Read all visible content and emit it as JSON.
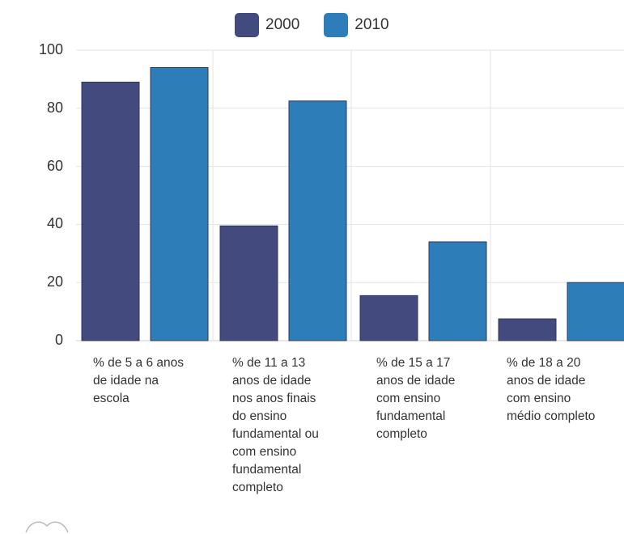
{
  "chart_data": {
    "type": "bar",
    "title": "",
    "xlabel": "",
    "ylabel": "",
    "ylim": [
      0,
      100
    ],
    "yticks": [
      "0",
      "20",
      "40",
      "60",
      "80",
      "100"
    ],
    "categories": [
      "% de 5 a 6 anos\nde idade na\nescola",
      "% de 11 a 13\nanos de idade\nnos anos finais\ndo ensino\nfundamental ou\ncom ensino\nfundamental\ncompleto",
      "% de 15 a 17\nanos de idade\ncom ensino\nfundamental\ncompleto",
      "% de 18 a 20\nanos de idade\ncom ensino\nmédio completo"
    ],
    "series": [
      {
        "name": "2000",
        "color": "#434a7e",
        "values": [
          89,
          39.5,
          15.5,
          7.5
        ]
      },
      {
        "name": "2010",
        "color": "#2d7eb8",
        "values": [
          94,
          82.5,
          34,
          20
        ]
      }
    ],
    "grid": true,
    "legend_position": "top-center"
  }
}
